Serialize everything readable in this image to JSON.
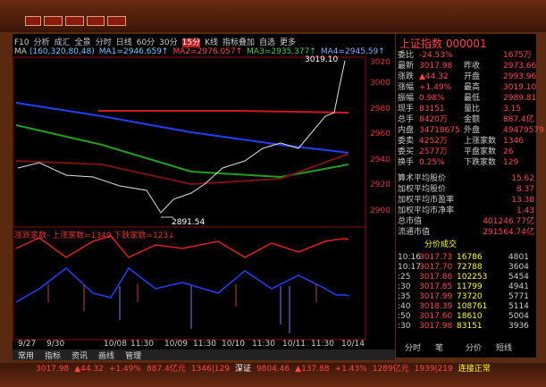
{
  "chart_toolbar": {
    "items": [
      "F10",
      "分析",
      "成汇",
      "全景",
      "分时",
      "日线",
      "60分",
      "30分",
      "15分",
      "K线",
      "指标叠加",
      "自选",
      "更多"
    ]
  },
  "ma_legend": {
    "label": "MA",
    "params": "(160,320,80,48)",
    "items": [
      "MA1=2946.659↑",
      "MA2=2976.057↑",
      "MA3=2935.377↑",
      "MA4=2945.59↑"
    ]
  },
  "price_axis": {
    "labels": [
      "3020",
      "3000",
      "2980",
      "2960",
      "2940",
      "2920",
      "2900"
    ]
  },
  "annotations": {
    "high": "3019.10",
    "low": "2891.54"
  },
  "indicator": {
    "title": "涨跌家数-",
    "text": "上涨家数=1349,下跌家数=123↓"
  },
  "time_axis": {
    "labels": [
      "9/27",
      "9/30",
      "10/08",
      "11:30",
      "10/09",
      "11:30",
      "10/10",
      "11:30",
      "10/11",
      "11:30",
      "10/14"
    ]
  },
  "bottom_tabs": [
    "常用",
    "指标",
    "资讯",
    "画线",
    "管理"
  ],
  "status_bar": {
    "items": [
      "3017.98",
      "▲44.32",
      "+1.49%",
      "887.4亿元",
      "1346|129",
      "深证",
      "9804.46",
      "▲137.88",
      "+1.43%",
      "1289亿元",
      "1939|219",
      "连接正常"
    ]
  },
  "quote": {
    "title": "上证指数",
    "code": "000001",
    "rows": [
      [
        "委比",
        "-24.53%",
        "",
        "1675万"
      ],
      [
        "最新",
        "3017.98",
        "昨收",
        "2973.66"
      ],
      [
        "涨跌",
        "▲44.32",
        "开盘",
        "2993.96"
      ],
      [
        "涨幅",
        "+1.49%",
        "最高",
        "3019.10"
      ],
      [
        "振幅",
        "0.98%",
        "最低",
        "2989.81"
      ],
      [
        "现手",
        "83151",
        "量比",
        "3.15"
      ],
      [
        "总手",
        "8420万",
        "金额",
        "887.4亿"
      ],
      [
        "内盘",
        "34718675",
        "外盘",
        "49479579"
      ],
      [
        "委卖",
        "4252万",
        "上涨家数",
        "1346"
      ],
      [
        "委买",
        "2577万",
        "平盘家数",
        "26"
      ],
      [
        "换手",
        "0.25%",
        "下跌家数",
        "129"
      ]
    ],
    "stats": [
      [
        "算术平均股价",
        "15.62"
      ],
      [
        "加权平均股价",
        "8.37"
      ],
      [
        "加权平均市盈率",
        "13.38"
      ],
      [
        "加权平均市净率",
        "1.43"
      ],
      [
        "总市值",
        "401246.77亿"
      ],
      [
        "流通市值",
        "291564.74亿"
      ]
    ]
  },
  "trades": {
    "tab": "分价成交",
    "rows": [
      [
        "10:16",
        "3017.73",
        "16786",
        "4801"
      ],
      [
        "10:17",
        "3017.70",
        "72788",
        "3604"
      ],
      [
        ":25",
        "3017.86",
        "102253",
        "5454"
      ],
      [
        ":30",
        "3017.85",
        "11799",
        "4941"
      ],
      [
        ":35",
        "3017.99",
        "73720",
        "5771"
      ],
      [
        ":40",
        "3018.39",
        "108761",
        "5114"
      ],
      [
        ":50",
        "3017.60",
        "18610",
        "5004"
      ],
      [
        ":30",
        "3017.98",
        "83151",
        "3936"
      ]
    ]
  },
  "side_tabs": [
    "分时",
    "笔",
    "分价",
    "短线"
  ]
}
